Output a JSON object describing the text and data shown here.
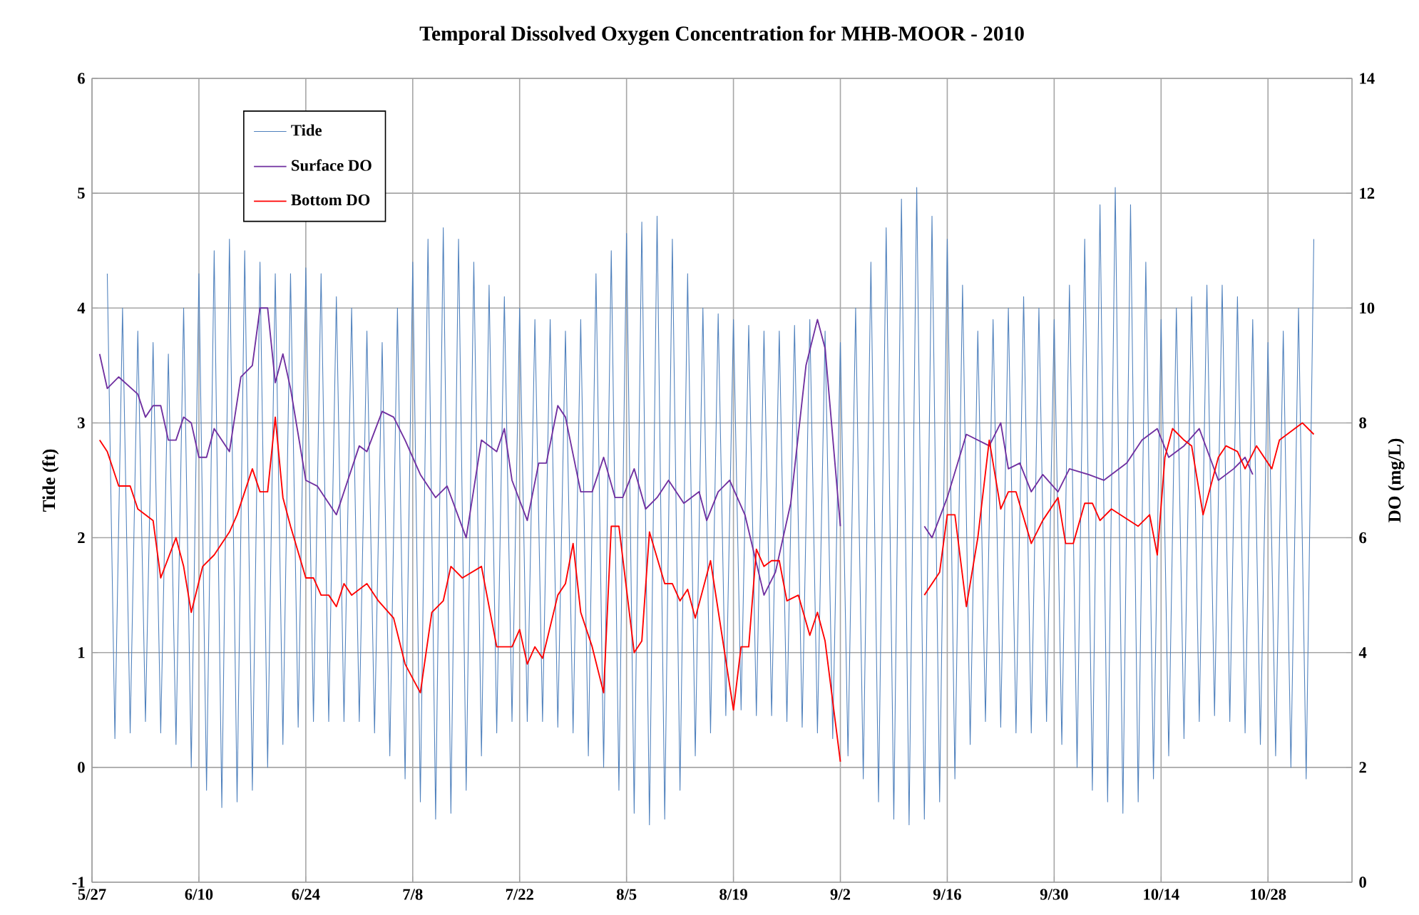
{
  "chart_data": {
    "type": "line",
    "title": "Temporal Dissolved Oxygen Concentration for MHB-MOOR  - 2010",
    "ylabel": "Tide (ft)",
    "y2label": "DO (mg/L)",
    "xlim": [
      "2010-05-27",
      "2010-11-08"
    ],
    "xticks": [
      {
        "value": "2010-05-27",
        "label": "5/27"
      },
      {
        "value": "2010-06-10",
        "label": "6/10"
      },
      {
        "value": "2010-06-24",
        "label": "6/24"
      },
      {
        "value": "2010-07-08",
        "label": "7/8"
      },
      {
        "value": "2010-07-22",
        "label": "7/22"
      },
      {
        "value": "2010-08-05",
        "label": "8/5"
      },
      {
        "value": "2010-08-19",
        "label": "8/19"
      },
      {
        "value": "2010-09-02",
        "label": "9/2"
      },
      {
        "value": "2010-09-16",
        "label": "9/16"
      },
      {
        "value": "2010-09-30",
        "label": "9/30"
      },
      {
        "value": "2010-10-14",
        "label": "10/14"
      },
      {
        "value": "2010-10-28",
        "label": "10/28"
      }
    ],
    "ylim": [
      -1,
      6
    ],
    "yticks": [
      -1,
      0,
      1,
      2,
      3,
      4,
      5,
      6
    ],
    "y2lim": [
      0,
      14
    ],
    "y2ticks": [
      0,
      2,
      4,
      6,
      8,
      10,
      12,
      14
    ],
    "grid": true,
    "legend": "top left",
    "marker": "none",
    "line_style": "solid",
    "series": [
      {
        "name": "Tide",
        "color": "#4f81bd",
        "x": [
          "2010-05-29",
          "2010-05-30",
          "2010-05-31",
          "2010-06-01",
          "2010-06-02",
          "2010-06-03",
          "2010-06-04",
          "2010-06-05",
          "2010-06-06",
          "2010-06-07",
          "2010-06-08",
          "2010-06-09",
          "2010-06-10",
          "2010-06-11",
          "2010-06-12",
          "2010-06-13",
          "2010-06-14",
          "2010-06-15",
          "2010-06-16",
          "2010-06-17",
          "2010-06-18",
          "2010-06-19",
          "2010-06-20",
          "2010-06-21",
          "2010-06-22",
          "2010-06-23",
          "2010-06-24",
          "2010-06-25",
          "2010-06-26",
          "2010-06-27",
          "2010-06-28",
          "2010-06-29",
          "2010-06-30",
          "2010-07-01",
          "2010-07-02",
          "2010-07-03",
          "2010-07-04",
          "2010-07-05",
          "2010-07-06",
          "2010-07-07",
          "2010-07-08",
          "2010-07-09",
          "2010-07-10",
          "2010-07-11",
          "2010-07-12",
          "2010-07-13",
          "2010-07-14",
          "2010-07-15",
          "2010-07-16",
          "2010-07-17",
          "2010-07-18",
          "2010-07-19",
          "2010-07-20",
          "2010-07-21",
          "2010-07-22",
          "2010-07-23",
          "2010-07-24",
          "2010-07-25",
          "2010-07-26",
          "2010-07-27",
          "2010-07-28",
          "2010-07-29",
          "2010-07-30",
          "2010-07-31",
          "2010-08-01",
          "2010-08-02",
          "2010-08-03",
          "2010-08-04",
          "2010-08-05",
          "2010-08-06",
          "2010-08-07",
          "2010-08-08",
          "2010-08-09",
          "2010-08-10",
          "2010-08-11",
          "2010-08-12",
          "2010-08-13",
          "2010-08-14",
          "2010-08-15",
          "2010-08-16",
          "2010-08-17",
          "2010-08-18",
          "2010-08-19",
          "2010-08-20",
          "2010-08-21",
          "2010-08-22",
          "2010-08-23",
          "2010-08-24",
          "2010-08-25",
          "2010-08-26",
          "2010-08-27",
          "2010-08-28",
          "2010-08-29",
          "2010-08-30",
          "2010-08-31",
          "2010-09-01",
          "2010-09-02",
          "2010-09-03",
          "2010-09-04",
          "2010-09-05",
          "2010-09-06",
          "2010-09-07",
          "2010-09-08",
          "2010-09-09",
          "2010-09-10",
          "2010-09-11",
          "2010-09-12",
          "2010-09-13",
          "2010-09-14",
          "2010-09-15",
          "2010-09-16",
          "2010-09-17",
          "2010-09-18",
          "2010-09-19",
          "2010-09-20",
          "2010-09-21",
          "2010-09-22",
          "2010-09-23",
          "2010-09-24",
          "2010-09-25",
          "2010-09-26",
          "2010-09-27",
          "2010-09-28",
          "2010-09-29",
          "2010-09-30",
          "2010-10-01",
          "2010-10-02",
          "2010-10-03",
          "2010-10-04",
          "2010-10-05",
          "2010-10-06",
          "2010-10-07",
          "2010-10-08",
          "2010-10-09",
          "2010-10-10",
          "2010-10-11",
          "2010-10-12",
          "2010-10-13",
          "2010-10-14",
          "2010-10-15",
          "2010-10-16",
          "2010-10-17",
          "2010-10-18",
          "2010-10-19",
          "2010-10-20",
          "2010-10-21",
          "2010-10-22",
          "2010-10-23",
          "2010-10-24",
          "2010-10-25",
          "2010-10-26",
          "2010-10-27",
          "2010-10-28",
          "2010-10-29",
          "2010-10-30",
          "2010-10-31",
          "2010-11-01",
          "2010-11-02",
          "2010-11-03"
        ],
        "values": [
          4.3,
          0.25,
          4.0,
          0.3,
          3.8,
          0.4,
          3.7,
          0.3,
          3.6,
          0.2,
          4.0,
          0.0,
          4.3,
          -0.2,
          4.5,
          -0.35,
          4.6,
          -0.3,
          4.5,
          -0.2,
          4.4,
          0.0,
          4.3,
          0.2,
          4.3,
          0.35,
          4.35,
          0.4,
          4.3,
          0.4,
          4.1,
          0.4,
          4.0,
          0.4,
          3.8,
          0.3,
          3.7,
          0.1,
          4.0,
          -0.1,
          4.4,
          -0.3,
          4.6,
          -0.45,
          4.7,
          -0.4,
          4.6,
          -0.2,
          4.4,
          0.1,
          4.2,
          0.3,
          4.1,
          0.4,
          4.0,
          0.4,
          3.9,
          0.4,
          3.9,
          0.35,
          3.8,
          0.3,
          3.9,
          0.1,
          4.3,
          0.0,
          4.5,
          -0.2,
          4.65,
          -0.4,
          4.75,
          -0.5,
          4.8,
          -0.45,
          4.6,
          -0.2,
          4.3,
          0.1,
          4.0,
          0.3,
          3.95,
          0.45,
          3.9,
          0.5,
          3.85,
          0.45,
          3.8,
          0.45,
          3.8,
          0.4,
          3.85,
          0.35,
          3.9,
          0.3,
          3.8,
          0.25,
          3.7,
          0.1,
          4.0,
          -0.1,
          4.4,
          -0.3,
          4.7,
          -0.45,
          4.95,
          -0.5,
          5.05,
          -0.45,
          4.8,
          -0.3,
          4.6,
          -0.1,
          4.2,
          0.2,
          3.8,
          0.4,
          3.9,
          0.35,
          4.0,
          0.3,
          4.1,
          0.3,
          4.0,
          0.4,
          3.9,
          0.2,
          4.2,
          0.0,
          4.6,
          -0.2,
          4.9,
          -0.3,
          5.05,
          -0.4,
          4.9,
          -0.3,
          4.4,
          -0.1,
          3.9,
          0.1,
          4.0,
          0.25,
          4.1,
          0.4,
          4.2,
          0.45,
          4.2,
          0.4,
          4.1,
          0.3,
          3.9,
          0.2,
          3.7,
          0.1,
          3.8,
          0.0,
          4.0,
          -0.1,
          4.6
        ]
      },
      {
        "name": "Surface DO",
        "color": "#7030a0",
        "axis": "y2",
        "x": [
          "2010-05-28",
          "2010-05-29",
          "2010-05-30T12:00",
          "2010-06-02",
          "2010-06-03",
          "2010-06-04",
          "2010-06-05",
          "2010-06-06",
          "2010-06-07",
          "2010-06-08",
          "2010-06-09",
          "2010-06-10",
          "2010-06-11",
          "2010-06-12",
          "2010-06-14",
          "2010-06-15T12:00",
          "2010-06-17",
          "2010-06-18",
          "2010-06-19",
          "2010-06-20",
          "2010-06-21",
          "2010-06-22",
          "2010-06-24",
          "2010-06-25T12:00",
          "2010-06-28",
          "2010-06-29T12:00",
          "2010-07-01",
          "2010-07-02",
          "2010-07-04",
          "2010-07-05T12:00",
          "2010-07-07",
          "2010-07-09",
          "2010-07-11",
          "2010-07-12T12:00",
          "2010-07-15",
          "2010-07-17",
          "2010-07-19",
          "2010-07-20",
          "2010-07-21",
          "2010-07-23",
          "2010-07-24T12:00",
          "2010-07-25T12:00",
          "2010-07-27",
          "2010-07-28",
          "2010-07-30",
          "2010-07-31T12:00",
          "2010-08-02",
          "2010-08-03T12:00",
          "2010-08-04T12:00",
          "2010-08-06",
          "2010-08-07T12:00",
          "2010-08-09",
          "2010-08-10T12:00",
          "2010-08-12T12:00",
          "2010-08-14T12:00",
          "2010-08-15T12:00",
          "2010-08-17",
          "2010-08-18T12:00",
          "2010-08-20T12:00",
          "2010-08-23",
          "2010-08-24T12:00",
          "2010-08-26T12:00",
          "2010-08-28T12:00",
          "2010-08-30",
          "2010-08-31",
          "2010-09-02",
          "2010-09-07",
          "2010-09-13",
          "2010-09-14",
          "2010-09-16",
          "2010-09-18T12:00",
          "2010-09-21T12:00",
          "2010-09-23",
          "2010-09-24",
          "2010-09-25T12:00",
          "2010-09-27",
          "2010-09-28T12:00",
          "2010-09-30T12:00",
          "2010-10-02",
          "2010-10-04T12:00",
          "2010-10-06T12:00",
          "2010-10-09T12:00",
          "2010-10-11T12:00",
          "2010-10-13T12:00",
          "2010-10-15",
          "2010-10-17",
          "2010-10-19",
          "2010-10-21T12:00",
          "2010-10-23T12:00",
          "2010-10-25",
          "2010-10-26"
        ],
        "values": [
          9.2,
          8.6,
          8.8,
          8.5,
          8.1,
          8.3,
          8.3,
          7.7,
          7.7,
          8.1,
          8.0,
          7.4,
          7.4,
          7.9,
          7.5,
          8.8,
          9.0,
          10.0,
          10.0,
          8.7,
          9.2,
          8.6,
          7.0,
          6.9,
          6.4,
          7.0,
          7.6,
          7.5,
          8.2,
          8.1,
          7.7,
          7.1,
          6.7,
          6.9,
          6.0,
          7.7,
          7.5,
          7.9,
          7.0,
          6.3,
          7.3,
          7.3,
          8.3,
          8.1,
          6.8,
          6.8,
          7.4,
          6.7,
          6.7,
          7.2,
          6.5,
          6.7,
          7.0,
          6.6,
          6.8,
          6.3,
          6.8,
          7.0,
          6.4,
          5.0,
          5.4,
          6.6,
          9.0,
          9.8,
          9.3,
          6.2,
          null,
          6.2,
          6.0,
          6.7,
          7.8,
          7.6,
          8.0,
          7.2,
          7.3,
          6.8,
          7.1,
          6.8,
          7.2,
          7.1,
          7.0,
          7.3,
          7.7,
          7.9,
          7.4,
          7.6,
          7.9,
          7.0,
          7.2,
          7.4,
          7.1
        ]
      },
      {
        "name": "Bottom DO",
        "color": "#ff0000",
        "axis": "y2",
        "x": [
          "2010-05-28",
          "2010-05-29",
          "2010-05-30T12:00",
          "2010-06-01",
          "2010-06-02",
          "2010-06-04",
          "2010-06-05",
          "2010-06-07",
          "2010-06-08",
          "2010-06-09",
          "2010-06-10T12:00",
          "2010-06-12",
          "2010-06-14",
          "2010-06-15",
          "2010-06-17",
          "2010-06-18",
          "2010-06-19",
          "2010-06-20",
          "2010-06-21",
          "2010-06-22",
          "2010-06-24",
          "2010-06-25",
          "2010-06-26",
          "2010-06-27",
          "2010-06-28",
          "2010-06-29",
          "2010-06-30",
          "2010-07-02",
          "2010-07-03T12:00",
          "2010-07-05T12:00",
          "2010-07-07",
          "2010-07-09",
          "2010-07-10T12:00",
          "2010-07-12",
          "2010-07-13",
          "2010-07-14T12:00",
          "2010-07-17",
          "2010-07-19",
          "2010-07-21",
          "2010-07-22",
          "2010-07-23",
          "2010-07-24",
          "2010-07-25",
          "2010-07-27",
          "2010-07-28",
          "2010-07-29",
          "2010-07-30",
          "2010-07-31T12:00",
          "2010-08-02",
          "2010-08-03",
          "2010-08-04",
          "2010-08-06",
          "2010-08-07",
          "2010-08-08",
          "2010-08-10",
          "2010-08-11",
          "2010-08-12",
          "2010-08-13",
          "2010-08-14",
          "2010-08-16",
          "2010-08-19",
          "2010-08-20",
          "2010-08-21",
          "2010-08-22",
          "2010-08-23",
          "2010-08-24",
          "2010-08-25",
          "2010-08-26",
          "2010-08-27T12:00",
          "2010-08-29",
          "2010-08-30",
          "2010-08-31",
          "2010-09-02",
          "2010-09-07",
          "2010-09-13",
          "2010-09-15",
          "2010-09-16",
          "2010-09-17",
          "2010-09-18T12:00",
          "2010-09-20",
          "2010-09-21T12:00",
          "2010-09-23",
          "2010-09-24",
          "2010-09-25",
          "2010-09-27",
          "2010-09-28T12:00",
          "2010-09-30T12:00",
          "2010-10-01T12:00",
          "2010-10-02T12:00",
          "2010-10-04",
          "2010-10-05",
          "2010-10-06",
          "2010-10-07T12:00",
          "2010-10-11",
          "2010-10-12T12:00",
          "2010-10-13T12:00",
          "2010-10-14T12:00",
          "2010-10-15T12:00",
          "2010-10-17",
          "2010-10-18",
          "2010-10-19T12:00",
          "2010-10-21T12:00",
          "2010-10-22T12:00",
          "2010-10-24",
          "2010-10-25",
          "2010-10-26T12:00",
          "2010-10-28T12:00",
          "2010-10-29T12:00",
          "2010-11-01T12:00",
          "2010-11-03"
        ],
        "values": [
          7.7,
          7.5,
          6.9,
          6.9,
          6.5,
          6.3,
          5.3,
          6.0,
          5.5,
          4.7,
          5.5,
          5.7,
          6.1,
          6.4,
          7.2,
          6.8,
          6.8,
          8.1,
          6.7,
          6.2,
          5.3,
          5.3,
          5.0,
          5.0,
          4.8,
          5.2,
          5.0,
          5.2,
          4.9,
          4.6,
          3.8,
          3.3,
          4.7,
          4.9,
          5.5,
          5.3,
          5.5,
          4.1,
          4.1,
          4.4,
          3.8,
          4.1,
          3.9,
          5.0,
          5.2,
          5.9,
          4.7,
          4.1,
          3.3,
          6.2,
          6.2,
          4.0,
          4.2,
          6.1,
          5.2,
          5.2,
          4.9,
          5.1,
          4.6,
          5.6,
          3.0,
          4.1,
          4.1,
          5.8,
          5.5,
          5.6,
          5.6,
          4.9,
          5.0,
          4.3,
          4.7,
          4.2,
          2.1,
          null,
          5.0,
          5.4,
          6.4,
          6.4,
          4.8,
          6.0,
          7.7,
          6.5,
          6.8,
          6.8,
          5.9,
          6.3,
          6.7,
          5.9,
          5.9,
          6.6,
          6.6,
          6.3,
          6.5,
          6.2,
          6.4,
          5.7,
          7.4,
          7.9,
          7.7,
          7.6,
          6.4,
          7.4,
          7.6,
          7.5,
          7.2,
          7.6,
          7.2,
          7.7,
          8.0,
          7.8
        ]
      }
    ]
  }
}
